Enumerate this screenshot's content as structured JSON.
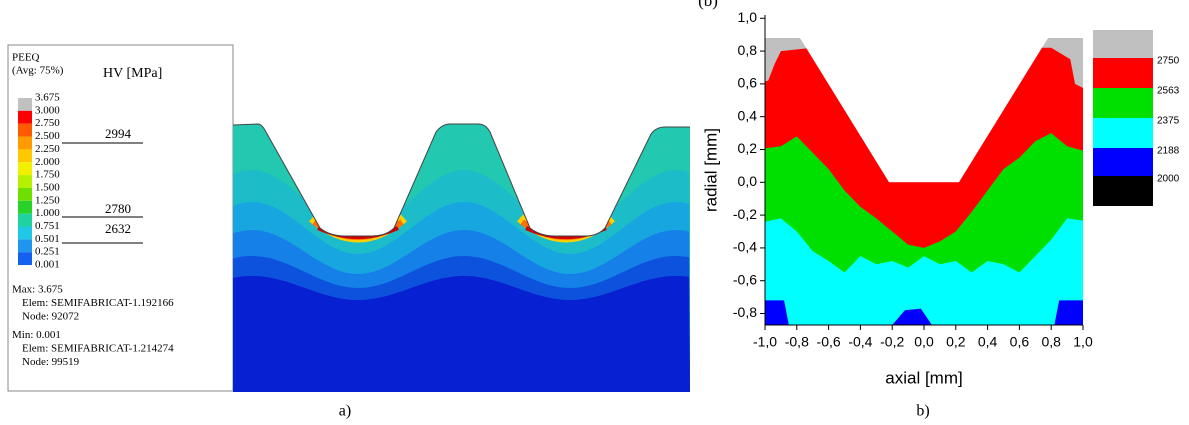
{
  "chart_data": [
    {
      "type": "contour",
      "title": "PEEQ",
      "subtitle": "(Avg: 75%)",
      "annotation_title": "HV [MPa]",
      "levels": [
        3.675,
        {
          "value": 3,
          "label": "3.000"
        },
        {
          "value": 2.75,
          "label": "2.750"
        },
        {
          "value": 2.5,
          "label": "2.500"
        },
        {
          "value": 2.25,
          "label": "2.250"
        },
        {
          "value": 2,
          "label": "2.000"
        },
        {
          "value": 1.75,
          "label": "1.750"
        },
        {
          "value": 1.5,
          "label": "1.500"
        },
        {
          "value": 1.25,
          "label": "1.250"
        },
        {
          "value": 1,
          "label": "1.000"
        },
        0.751,
        0.501,
        0.251,
        0.001
      ],
      "colors": [
        "#c0c0c0",
        "#ff0000",
        "#ff5a00",
        "#ff9a00",
        "#ffc800",
        "#f0f000",
        "#b4f000",
        "#6ee000",
        "#28d228",
        "#20d2a0",
        "#20c8e6",
        "#1e96f0",
        "#1460f0",
        "#0000e6"
      ],
      "hv_marks": [
        2994,
        2780,
        2632
      ],
      "info": [
        "Max: 3.675",
        "Elem: SEMIFABRICAT-1.192166",
        "Node: 92072",
        "Min: 0.001",
        "Elem: SEMIFABRICAT-1.214274",
        "Node: 99519"
      ],
      "caption": "a)"
    },
    {
      "type": "contour",
      "label_top": "(b)",
      "xlabel": "axial [mm]",
      "ylabel": "radial [mm]",
      "xlim": [
        -1,
        1
      ],
      "ylim": [
        -0.87,
        1.02
      ],
      "xticks": [
        {
          "value": -1,
          "label": "-1,0"
        },
        {
          "value": -0.8,
          "label": "-0,8"
        },
        {
          "value": -0.6,
          "label": "-0,6"
        },
        {
          "value": -0.4,
          "label": "-0,4"
        },
        {
          "value": -0.2,
          "label": "-0,2"
        },
        {
          "value": 0,
          "label": "0,0"
        },
        {
          "value": 0.2,
          "label": "0,2"
        },
        {
          "value": 0.4,
          "label": "0,4"
        },
        {
          "value": 0.6,
          "label": "0,6"
        },
        {
          "value": 0.8,
          "label": "0,8"
        },
        {
          "value": 1,
          "label": "1,0"
        }
      ],
      "yticks": [
        {
          "value": -0.8,
          "label": "-0,8"
        },
        {
          "value": -0.6,
          "label": "-0,6"
        },
        {
          "value": -0.4,
          "label": "-0,4"
        },
        {
          "value": -0.2,
          "label": "-0,2"
        },
        {
          "value": 0,
          "label": "0,0"
        },
        {
          "value": 0.2,
          "label": "0,2"
        },
        {
          "value": 0.4,
          "label": "0,4"
        },
        {
          "value": 0.6,
          "label": "0,6"
        },
        {
          "value": 0.8,
          "label": "0,8"
        },
        {
          "value": 1,
          "label": "1,0"
        }
      ],
      "levels": [
        2750,
        2563,
        2375,
        2188,
        2000
      ],
      "colors": [
        "#c0c0c0",
        "#ff0000",
        "#00e000",
        "#00ffff",
        "#0000ff",
        "#000000"
      ],
      "caption": "b)"
    }
  ]
}
